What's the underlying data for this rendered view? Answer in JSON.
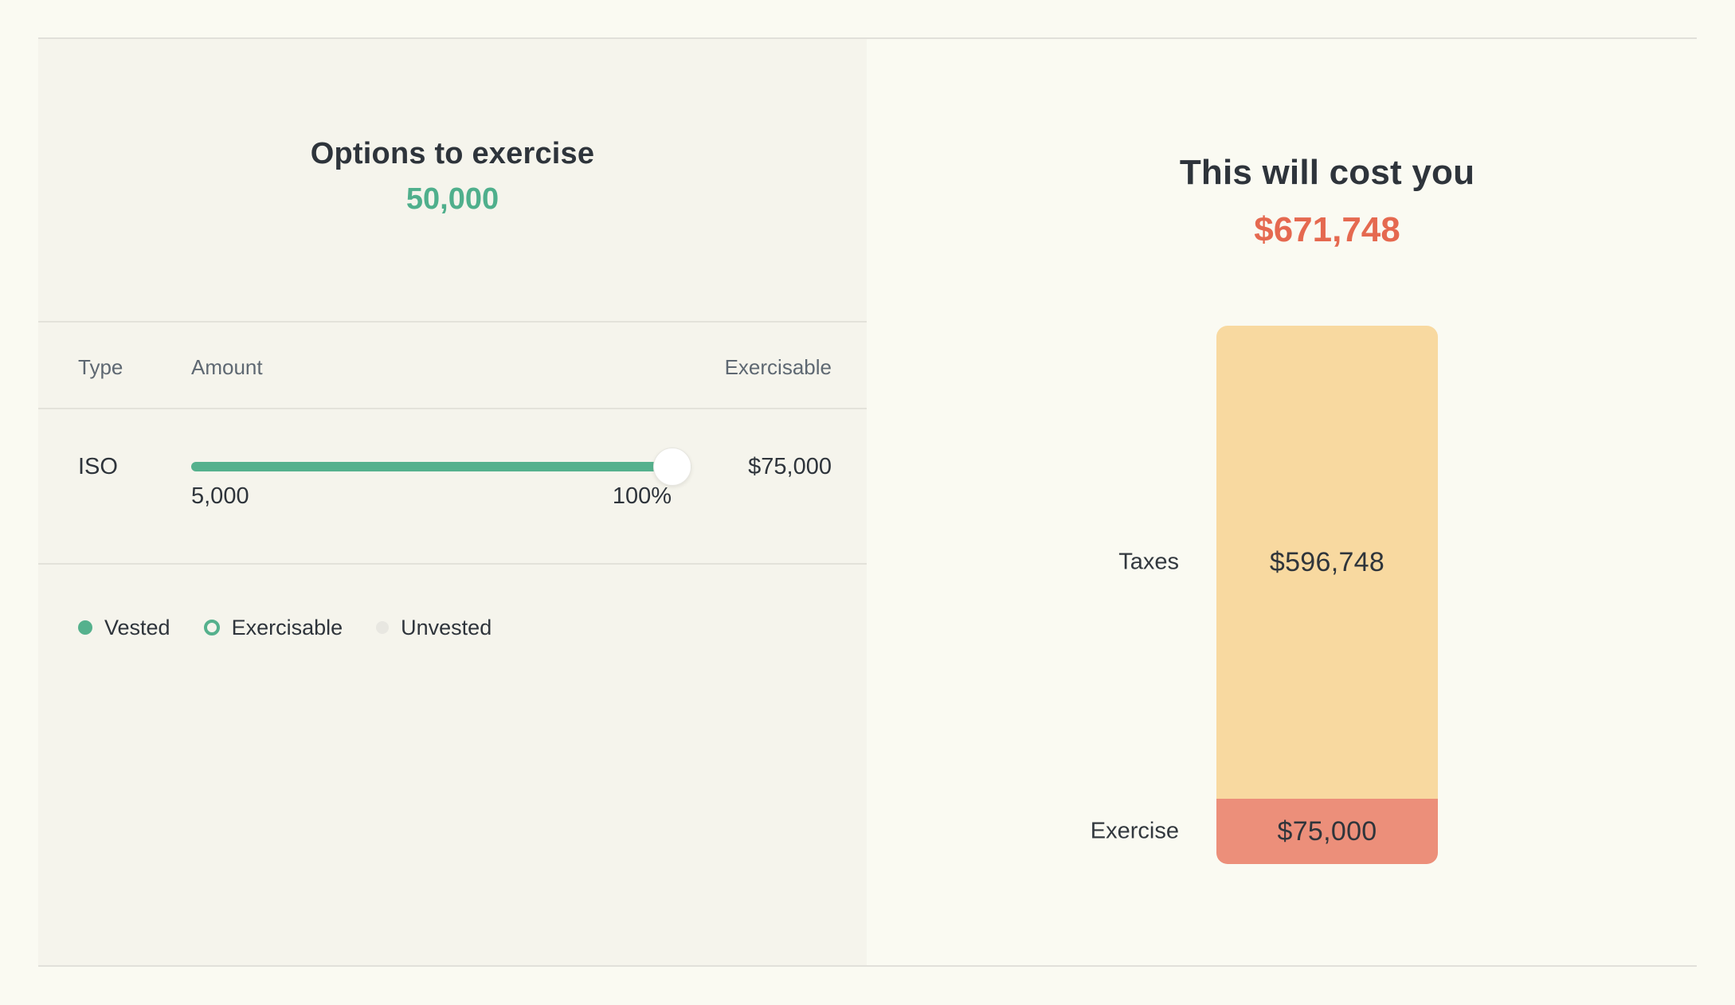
{
  "left_panel": {
    "title": "Options to exercise",
    "options_count": "50,000",
    "table": {
      "headers": {
        "type": "Type",
        "amount": "Amount",
        "exercisable": "Exercisable"
      },
      "row": {
        "type": "ISO",
        "exercisable_value": "$75,000",
        "slider": {
          "min_label": "5,000",
          "current_label": "100%",
          "percent": 100
        }
      }
    },
    "legend": [
      {
        "label": "Vested",
        "marker": "filled-dot",
        "color": "#55B18D"
      },
      {
        "label": "Exercisable",
        "marker": "ring",
        "color": "#55B18D"
      },
      {
        "label": "Unvested",
        "marker": "filled-dot",
        "color": "#E8E7E1"
      }
    ]
  },
  "right_panel": {
    "title": "This will cost you",
    "total_cost": "$671,748"
  },
  "chart_data": {
    "type": "bar",
    "stacked": true,
    "orientation": "vertical",
    "categories": [
      "Taxes",
      "Exercise"
    ],
    "values": [
      596748,
      75000
    ],
    "total": 671748,
    "segments": {
      "taxes": {
        "label": "Taxes",
        "value_label": "$596,748",
        "color": "#F8D9A0"
      },
      "exercise": {
        "label": "Exercise",
        "value_label": "$75,000",
        "color": "#EC8F7A"
      }
    },
    "title": "This will cost you",
    "legend_position": "none",
    "grid": false
  },
  "colors": {
    "accent_green": "#4FAF8C",
    "accent_red": "#E56950",
    "bar_taxes": "#F8D9A0",
    "bar_exercise": "#EC8F7A",
    "panel_bg": "#F5F4EC",
    "page_bg": "#FAFAF2",
    "hairline": "#E1E0DA",
    "muted_text": "#5E6872",
    "dark_text": "#2E343B"
  }
}
